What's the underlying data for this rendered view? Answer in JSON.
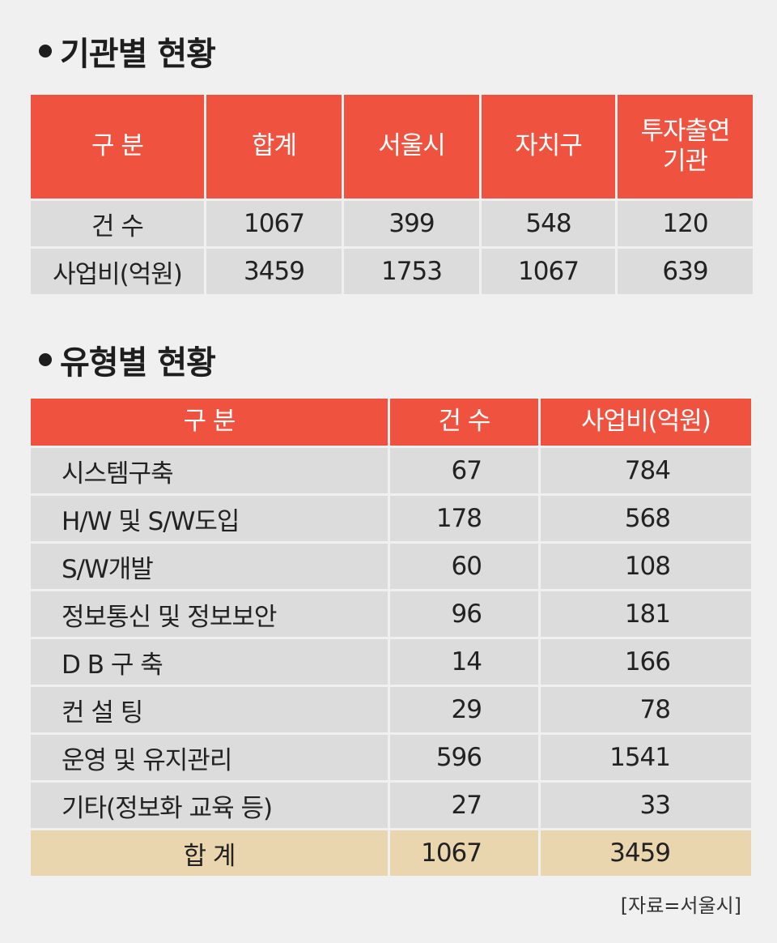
{
  "section1": {
    "title": "기관별 현황",
    "headers": [
      "구 분",
      "합계",
      "서울시",
      "자치구",
      "투자출연\n기관"
    ],
    "rows": [
      {
        "label": "건 수",
        "values": [
          "1067",
          "399",
          "548",
          "120"
        ]
      },
      {
        "label": "사업비(억원)",
        "values": [
          "3459",
          "1753",
          "1067",
          "639"
        ]
      }
    ]
  },
  "section2": {
    "title": "유형별 현황",
    "headers": [
      "구 분",
      "건 수",
      "사업비(억원)"
    ],
    "rows": [
      {
        "label": "시스템구축",
        "count": "67",
        "cost": "784"
      },
      {
        "label": "H/W 및 S/W도입",
        "count": "178",
        "cost": "568"
      },
      {
        "label": "S/W개발",
        "count": "60",
        "cost": "108"
      },
      {
        "label": "정보통신 및 정보보안",
        "count": "96",
        "cost": "181"
      },
      {
        "label": "D B 구 축",
        "count": "14",
        "cost": "166"
      },
      {
        "label": "컨 설 팅",
        "count": "29",
        "cost": "78"
      },
      {
        "label": "운영 및 유지관리",
        "count": "596",
        "cost": "1541"
      },
      {
        "label": "기타(정보화 교육 등)",
        "count": "27",
        "cost": "33"
      }
    ],
    "total": {
      "label": "합 계",
      "count": "1067",
      "cost": "3459"
    }
  },
  "source": "[자료=서울시]",
  "colors": {
    "header": "#ef5340",
    "row": "#dcdcdc",
    "total": "#ead6ae",
    "background": "#f0f0f0"
  }
}
